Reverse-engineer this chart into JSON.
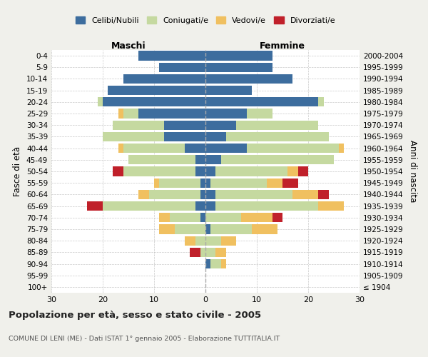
{
  "age_groups": [
    "100+",
    "95-99",
    "90-94",
    "85-89",
    "80-84",
    "75-79",
    "70-74",
    "65-69",
    "60-64",
    "55-59",
    "50-54",
    "45-49",
    "40-44",
    "35-39",
    "30-34",
    "25-29",
    "20-24",
    "15-19",
    "10-14",
    "5-9",
    "0-4"
  ],
  "birth_years": [
    "≤ 1904",
    "1905-1909",
    "1910-1914",
    "1915-1919",
    "1920-1924",
    "1925-1929",
    "1930-1934",
    "1935-1939",
    "1940-1944",
    "1945-1949",
    "1950-1954",
    "1955-1959",
    "1960-1964",
    "1965-1969",
    "1970-1974",
    "1975-1979",
    "1980-1984",
    "1985-1989",
    "1990-1994",
    "1995-1999",
    "2000-2004"
  ],
  "colors": {
    "celibi": "#3d6d9e",
    "coniugati": "#c5d9a0",
    "vedovi": "#f0c060",
    "divorziati": "#c0202a"
  },
  "maschi": {
    "celibi": [
      0,
      0,
      0,
      0,
      0,
      0,
      1,
      2,
      1,
      1,
      2,
      2,
      4,
      8,
      8,
      13,
      20,
      19,
      16,
      9,
      13
    ],
    "coniugati": [
      0,
      0,
      0,
      1,
      2,
      6,
      6,
      18,
      10,
      8,
      14,
      13,
      12,
      12,
      10,
      3,
      1,
      0,
      0,
      0,
      0
    ],
    "vedovi": [
      0,
      0,
      0,
      0,
      2,
      3,
      2,
      0,
      2,
      1,
      0,
      0,
      1,
      0,
      0,
      1,
      0,
      0,
      0,
      0,
      0
    ],
    "divorziati": [
      0,
      0,
      0,
      2,
      0,
      0,
      0,
      3,
      0,
      0,
      2,
      0,
      0,
      0,
      0,
      0,
      0,
      0,
      0,
      0,
      0
    ]
  },
  "femmine": {
    "celibi": [
      0,
      0,
      1,
      0,
      0,
      1,
      0,
      2,
      2,
      1,
      2,
      3,
      8,
      4,
      6,
      8,
      22,
      9,
      17,
      13,
      13
    ],
    "coniugati": [
      0,
      0,
      2,
      2,
      3,
      8,
      7,
      20,
      15,
      11,
      14,
      22,
      18,
      20,
      16,
      5,
      1,
      0,
      0,
      0,
      0
    ],
    "vedovi": [
      0,
      0,
      1,
      2,
      3,
      5,
      6,
      5,
      5,
      3,
      2,
      0,
      1,
      0,
      0,
      0,
      0,
      0,
      0,
      0,
      0
    ],
    "divorziati": [
      0,
      0,
      0,
      0,
      0,
      0,
      2,
      0,
      2,
      3,
      2,
      0,
      0,
      0,
      0,
      0,
      0,
      0,
      0,
      0,
      0
    ]
  },
  "xlim": 30,
  "title_main": "Popolazione per età, sesso e stato civile - 2005",
  "title_sub": "COMUNE DI LENI (ME) - Dati ISTAT 1° gennaio 2005 - Elaborazione TUTTITALIA.IT",
  "ylabel_left": "Fasce di età",
  "ylabel_right": "Anni di nascita",
  "xlabel_maschi": "Maschi",
  "xlabel_femmine": "Femmine",
  "legend_labels": [
    "Celibi/Nubili",
    "Coniugati/e",
    "Vedovi/e",
    "Divorziati/e"
  ],
  "bg_color": "#f0f0eb",
  "plot_bg": "#ffffff"
}
